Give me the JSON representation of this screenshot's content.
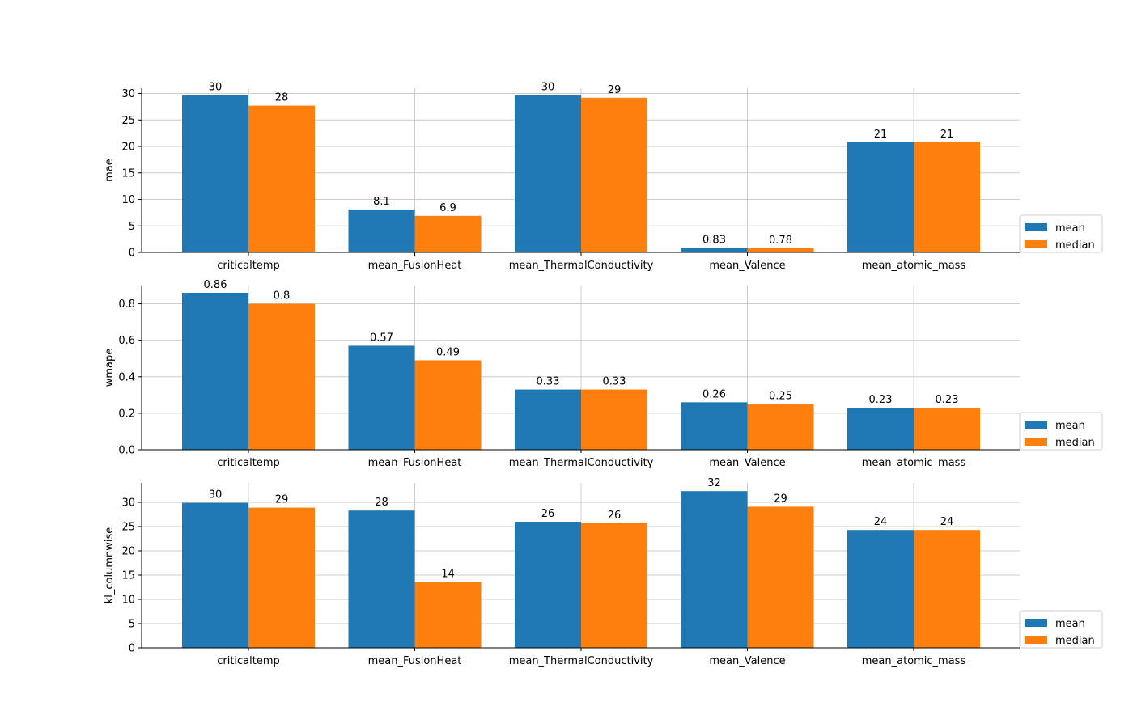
{
  "chart_data": [
    {
      "type": "bar",
      "ylabel": "mae",
      "ylim": [
        0,
        31
      ],
      "yticks": [
        0,
        5,
        10,
        15,
        20,
        25,
        30
      ],
      "ytick_labels": [
        "0",
        "5",
        "10",
        "15",
        "20",
        "25",
        "30"
      ],
      "categories": [
        "criticaltemp",
        "mean_FusionHeat",
        "mean_ThermalConductivity",
        "mean_Valence",
        "mean_atomic_mass"
      ],
      "series": [
        {
          "name": "mean",
          "color": "#1f77b4",
          "values": [
            29.7,
            8.1,
            29.7,
            0.83,
            20.8
          ],
          "labels": [
            "30",
            "8.1",
            "30",
            "0.83",
            "21"
          ]
        },
        {
          "name": "median",
          "color": "#ff7f0e",
          "values": [
            27.7,
            6.9,
            29.2,
            0.78,
            20.8
          ],
          "labels": [
            "28",
            "6.9",
            "29",
            "0.78",
            "21"
          ]
        }
      ],
      "grid": true,
      "legend": "bottom-right, outside"
    },
    {
      "type": "bar",
      "ylabel": "wmape",
      "ylim": [
        0,
        0.9
      ],
      "yticks": [
        0,
        0.2,
        0.4,
        0.6,
        0.8
      ],
      "ytick_labels": [
        "0.0",
        "0.2",
        "0.4",
        "0.6",
        "0.8"
      ],
      "categories": [
        "criticaltemp",
        "mean_FusionHeat",
        "mean_ThermalConductivity",
        "mean_Valence",
        "mean_atomic_mass"
      ],
      "series": [
        {
          "name": "mean",
          "color": "#1f77b4",
          "values": [
            0.86,
            0.57,
            0.33,
            0.26,
            0.23
          ],
          "labels": [
            "0.86",
            "0.57",
            "0.33",
            "0.26",
            "0.23"
          ]
        },
        {
          "name": "median",
          "color": "#ff7f0e",
          "values": [
            0.8,
            0.49,
            0.33,
            0.25,
            0.23
          ],
          "labels": [
            "0.8",
            "0.49",
            "0.33",
            "0.25",
            "0.23"
          ]
        }
      ],
      "grid": true,
      "legend": "bottom-right, outside"
    },
    {
      "type": "bar",
      "ylabel": "kl_columnwise",
      "ylim": [
        0,
        34
      ],
      "yticks": [
        0,
        5,
        10,
        15,
        20,
        25,
        30
      ],
      "ytick_labels": [
        "0",
        "5",
        "10",
        "15",
        "20",
        "25",
        "30"
      ],
      "categories": [
        "criticaltemp",
        "mean_FusionHeat",
        "mean_ThermalConductivity",
        "mean_Valence",
        "mean_atomic_mass"
      ],
      "series": [
        {
          "name": "mean",
          "color": "#1f77b4",
          "values": [
            29.9,
            28.3,
            26.0,
            32.3,
            24.3
          ],
          "labels": [
            "30",
            "28",
            "26",
            "32",
            "24"
          ]
        },
        {
          "name": "median",
          "color": "#ff7f0e",
          "values": [
            28.9,
            13.6,
            25.7,
            29.1,
            24.3
          ],
          "labels": [
            "29",
            "14",
            "26",
            "29",
            "24"
          ]
        }
      ],
      "grid": true,
      "legend": "bottom-right, outside"
    }
  ]
}
